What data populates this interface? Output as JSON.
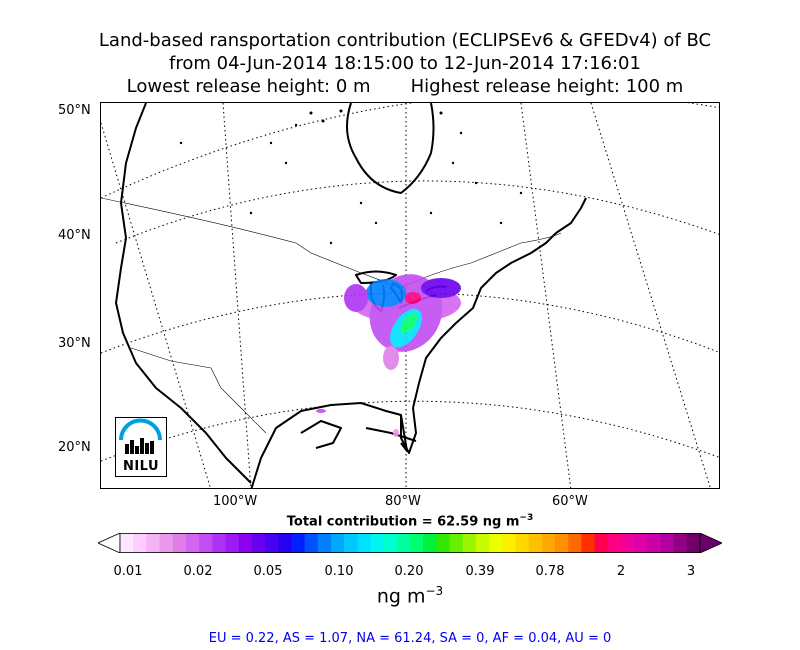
{
  "title": {
    "line1": "Land-based ransportation contribution (ECLIPSEv6 & GFEDv4) of BC",
    "line2": "from 04-Jun-2014 18:15:00 to 12-Jun-2014 17:16:01",
    "line3": "Lowest release height: 0 m       Highest release height: 100 m"
  },
  "map": {
    "lat_labels": [
      "50°N",
      "40°N",
      "30°N",
      "20°N"
    ],
    "lon_labels": [
      "100°W",
      "80°W",
      "60°W"
    ],
    "logo_text": "NILU"
  },
  "total_contribution": {
    "label": "Total contribution = 62.59 ng m",
    "unit_exponent": "−3"
  },
  "colorbar": {
    "tick_labels": [
      "0.01",
      "0.02",
      "0.05",
      "0.10",
      "0.20",
      "0.39",
      "0.78",
      "2",
      "3"
    ],
    "unit": "ng m",
    "unit_exponent": "−3",
    "colors": [
      "#ffe6ff",
      "#ffccff",
      "#f5b3f5",
      "#eb99eb",
      "#e07fe8",
      "#d266f0",
      "#c24df2",
      "#b033f5",
      "#9e1af5",
      "#8c00f0",
      "#6a00f0",
      "#4800f0",
      "#2600f0",
      "#0020ff",
      "#0050ff",
      "#0080ff",
      "#00a8ff",
      "#00c8ff",
      "#00e0ff",
      "#00f5f0",
      "#00ffd0",
      "#00ffa0",
      "#00ff70",
      "#00f040",
      "#33e800",
      "#66f000",
      "#99f500",
      "#c8fa00",
      "#eaff00",
      "#fff000",
      "#ffd800",
      "#ffc000",
      "#ffa800",
      "#ff9000",
      "#ff6a00",
      "#ff3000",
      "#ff0050",
      "#ff0080",
      "#f0009a",
      "#e000a8",
      "#cc00a8",
      "#b000a0",
      "#900080",
      "#700068"
    ],
    "under_color": "#ffffff",
    "over_color": "#6a006a"
  },
  "footer": "EU = 0.22,  AS = 1.07,  NA = 61.24,  SA = 0,  AF = 0.04,  AU = 0"
}
